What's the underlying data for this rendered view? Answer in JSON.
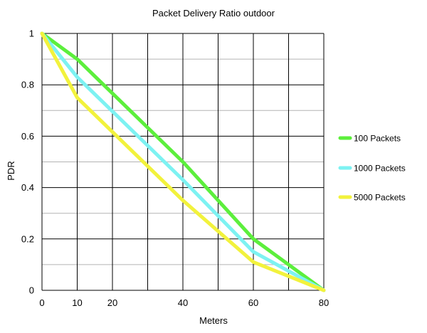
{
  "chart_data": {
    "type": "line",
    "title": "Packet Delivery Ratio outdoor",
    "xlabel": "Meters",
    "ylabel": "PDR",
    "xlim": [
      0,
      80
    ],
    "ylim": [
      0,
      1
    ],
    "x_ticks": [
      0,
      10,
      20,
      30,
      40,
      50,
      60,
      70,
      80
    ],
    "x_tick_labels": [
      "0",
      "10",
      "20",
      "",
      "40",
      "",
      "60",
      "",
      "80"
    ],
    "y_ticks": [
      0,
      0.2,
      0.4,
      0.6,
      0.8,
      1
    ],
    "y_tick_labels": [
      "0",
      "0.2",
      "0.4",
      "0.6",
      "0.8",
      "1"
    ],
    "y_minor_gridlines": [
      0.1,
      0.3,
      0.5,
      0.7,
      0.9
    ],
    "grid": true,
    "legend_position": "right",
    "x": [
      0,
      10,
      40,
      60,
      80
    ],
    "series": [
      {
        "name": "100 Packets",
        "color": "#5cef3c",
        "values": [
          1,
          0.9,
          0.5,
          0.2,
          0
        ]
      },
      {
        "name": "1000 Packets",
        "color": "#7df2f2",
        "values": [
          1,
          0.83,
          0.43,
          0.15,
          0
        ]
      },
      {
        "name": "5000 Packets",
        "color": "#f2f23c",
        "values": [
          1,
          0.75,
          0.35,
          0.11,
          0
        ]
      }
    ]
  }
}
